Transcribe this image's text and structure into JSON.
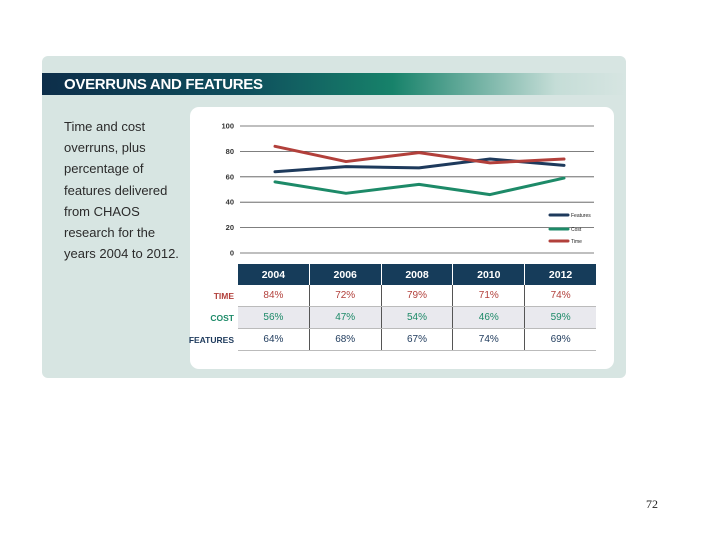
{
  "header": {
    "title": "OVERRUNS AND FEATURES"
  },
  "description": "Time and cost overruns, plus percentage of features delivered from CHAOS research for the years 2004 to 2012.",
  "chart_data": {
    "type": "line",
    "title": "OVERRUNS AND FEATURES",
    "categories": [
      "2004",
      "2006",
      "2008",
      "2010",
      "2012"
    ],
    "ylim": [
      0,
      100
    ],
    "yticks": [
      0,
      20,
      40,
      60,
      80,
      100
    ],
    "legend_position": "right",
    "series": [
      {
        "name": "Features",
        "color": "#1e3a5c",
        "values": [
          64,
          68,
          67,
          74,
          69
        ]
      },
      {
        "name": "Cost",
        "color": "#1d8a68",
        "values": [
          56,
          47,
          54,
          46,
          59
        ]
      },
      {
        "name": "Time",
        "color": "#b2403b",
        "values": [
          84,
          72,
          79,
          71,
          74
        ]
      }
    ]
  },
  "table": {
    "years": [
      "2004",
      "2006",
      "2008",
      "2010",
      "2012"
    ],
    "rows": [
      {
        "label": "TIME",
        "values": [
          "84%",
          "72%",
          "79%",
          "71%",
          "74%"
        ]
      },
      {
        "label": "COST",
        "values": [
          "56%",
          "47%",
          "54%",
          "46%",
          "59%"
        ]
      },
      {
        "label": "FEATURES",
        "values": [
          "64%",
          "68%",
          "67%",
          "74%",
          "69%"
        ]
      }
    ]
  },
  "page_number": "72"
}
